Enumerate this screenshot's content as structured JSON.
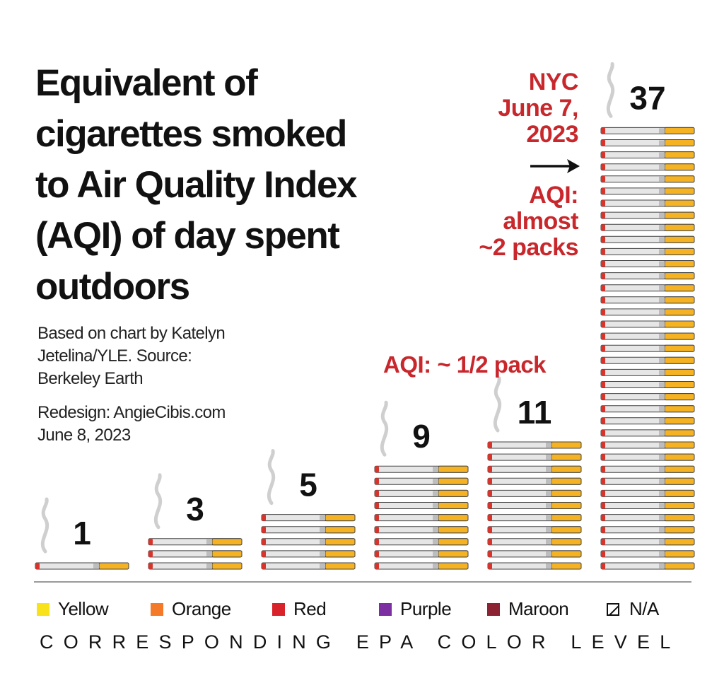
{
  "title_lines": [
    "Equivalent of",
    "cigarettes smoked",
    "to Air Quality Index",
    "(AQI) of day spent",
    "outdoors"
  ],
  "credits": {
    "source_lines": [
      "Based on chart by Katelyn",
      "Jetelina/YLE. Source:",
      "Berkeley Earth"
    ],
    "redesign_lines": [
      "Redesign: AngieCibis.com",
      "June 8, 2023"
    ]
  },
  "annotations": {
    "nyc_lines": [
      "NYC",
      "June 7,",
      "2023"
    ],
    "aqi_high_lines": [
      "AQI:",
      "almost",
      "~2 packs"
    ],
    "aqi_half": "AQI: ~ 1/2 pack"
  },
  "legend": {
    "items": [
      {
        "label": "Yellow",
        "color": "#f7e21b"
      },
      {
        "label": "Orange",
        "color": "#f47a2a"
      },
      {
        "label": "Red",
        "color": "#d9232b"
      },
      {
        "label": "Purple",
        "color": "#7b2fa0"
      },
      {
        "label": "Maroon",
        "color": "#8b2332"
      },
      {
        "label": "N/A",
        "color": "none"
      }
    ],
    "axis_caption": "CORRESPONDING EPA COLOR LEVEL"
  },
  "colors": {
    "accent_red": "#c8272c",
    "filter": "#f5b324",
    "paper": "#e6e6e6",
    "ember": "#d9342b"
  },
  "chart_data": {
    "type": "bar",
    "unit": "cigarettes",
    "categories": [
      "Yellow",
      "Orange",
      "Red",
      "Purple",
      "Maroon",
      "N/A"
    ],
    "values": [
      1,
      3,
      5,
      9,
      11,
      37
    ],
    "value_labels": [
      "1",
      "3",
      "5",
      "9",
      "11",
      "37"
    ],
    "title": "Equivalent of cigarettes smoked to Air Quality Index (AQI) of day spent outdoors",
    "xlabel": "CORRESPONDING EPA COLOR LEVEL",
    "ylabel": "",
    "ylim": [
      0,
      37
    ],
    "grid": false,
    "legend": "bottom"
  }
}
